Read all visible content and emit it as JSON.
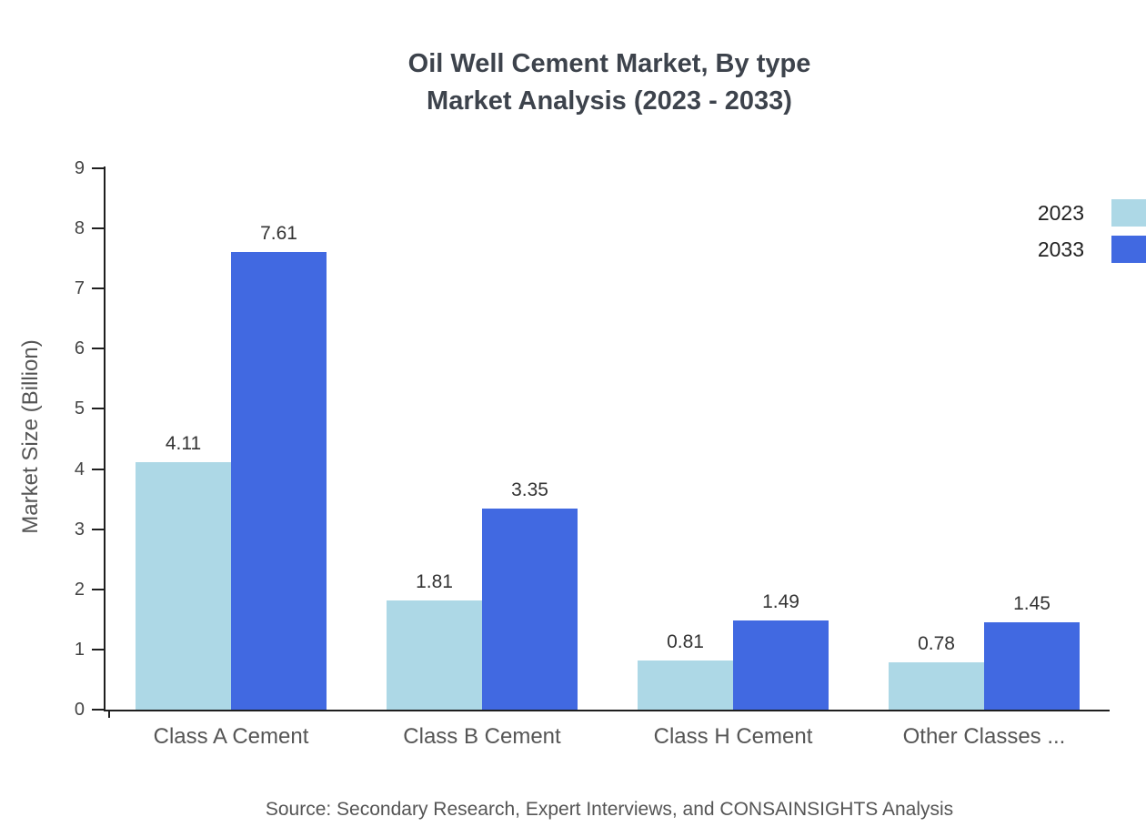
{
  "title": {
    "line1": "Oil Well Cement Market, By type",
    "line2": "Market Analysis (2023 - 2033)"
  },
  "source": "Source: Secondary Research, Expert Interviews, and CONSAINSIGHTS Analysis",
  "chart_data": {
    "type": "bar",
    "title": "Oil Well Cement Market, By type — Market Analysis (2023 - 2033)",
    "categories": [
      "Class A Cement",
      "Class B Cement",
      "Class H Cement",
      "Other Classes ..."
    ],
    "series": [
      {
        "name": "2023",
        "color": "#ADD8E6",
        "values": [
          4.11,
          1.81,
          0.81,
          0.78
        ]
      },
      {
        "name": "2033",
        "color": "#4169E1",
        "values": [
          7.61,
          3.35,
          1.49,
          1.45
        ]
      }
    ],
    "xlabel": "",
    "ylabel": "Market Size (Billion)",
    "ylim": [
      0,
      9
    ],
    "yticks": [
      0,
      1,
      2,
      3,
      4,
      5,
      6,
      7,
      8,
      9
    ],
    "grid": false,
    "legend_position": "top-right",
    "value_labels": true
  }
}
